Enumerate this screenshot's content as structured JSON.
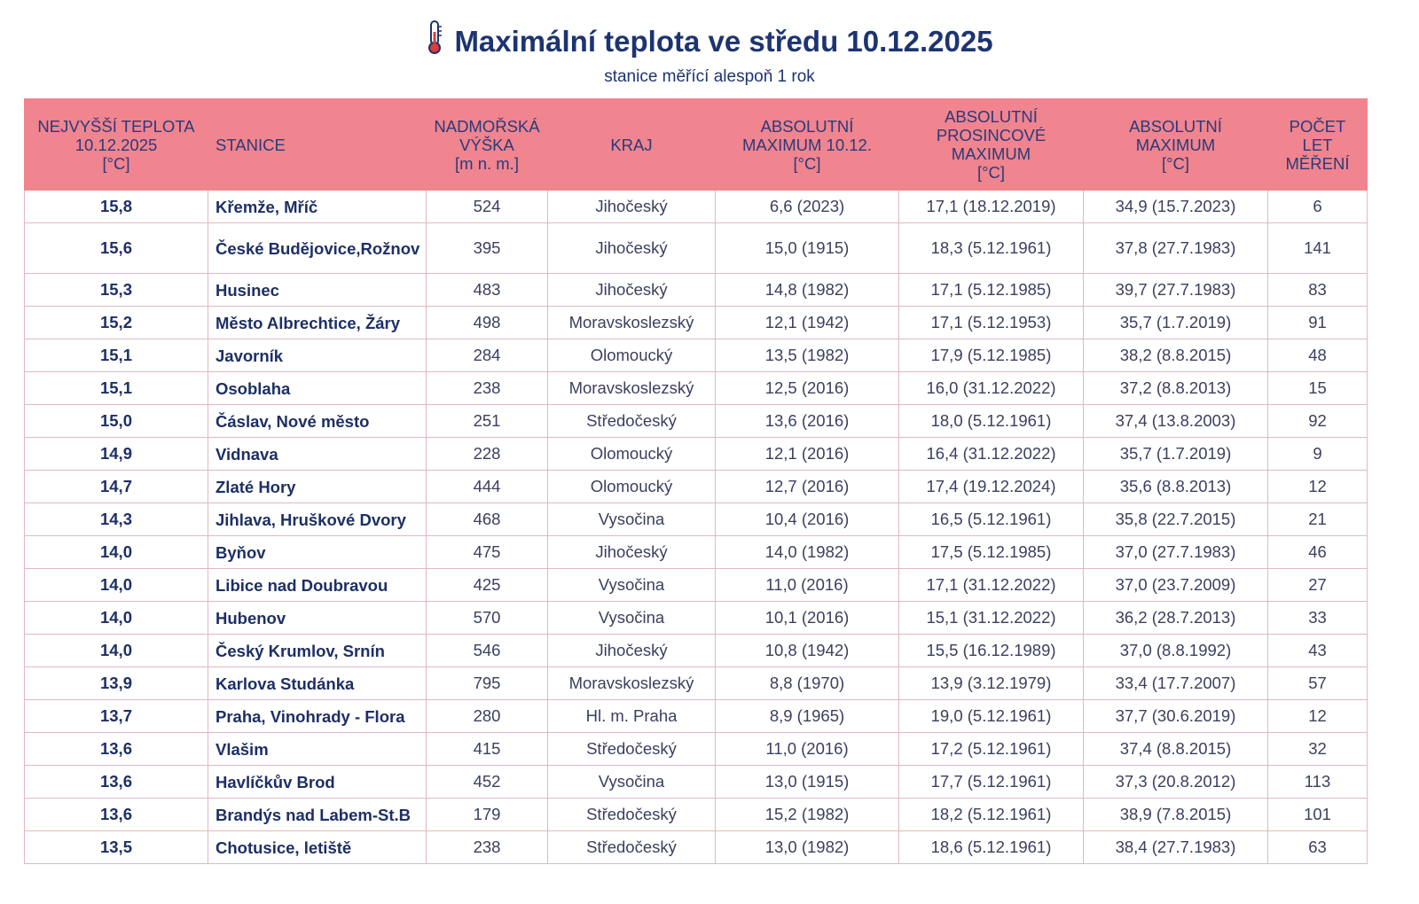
{
  "title": "Maximální teplota ve středu 10.12.2025",
  "subtitle": "stanice měřící alespoň 1 rok",
  "title_icon": "thermometer-icon",
  "colors": {
    "header_bg": "#f0848f",
    "title": "#1d3470",
    "border": "#e2b8bf"
  },
  "columns": [
    [
      "NEJVYŠŠÍ TEPLOTA",
      "10.12.2025",
      "[°C]"
    ],
    [
      "STANICE"
    ],
    [
      "NADMOŘSKÁ",
      "VÝŠKA",
      "[m n. m.]"
    ],
    [
      "KRAJ"
    ],
    [
      "ABSOLUTNÍ",
      "MAXIMUM 10.12.",
      "[°C]"
    ],
    [
      "ABSOLUTNÍ",
      "PROSINCOVÉ",
      "MAXIMUM",
      "[°C]"
    ],
    [
      "ABSOLUTNÍ",
      "MAXIMUM",
      "[°C]"
    ],
    [
      "POČET",
      "LET",
      "MĚŘENÍ"
    ]
  ],
  "rows": [
    [
      "15,8",
      "Křemže, Mříč",
      "524",
      "Jihočeský",
      "6,6 (2023)",
      "17,1 (18.12.2019)",
      "34,9 (15.7.2023)",
      "6"
    ],
    [
      "15,6",
      "České Budějovice,Rožnov",
      "395",
      "Jihočeský",
      "15,0 (1915)",
      "18,3 (5.12.1961)",
      "37,8 (27.7.1983)",
      "141"
    ],
    [
      "15,3",
      "Husinec",
      "483",
      "Jihočeský",
      "14,8 (1982)",
      "17,1 (5.12.1985)",
      "39,7 (27.7.1983)",
      "83"
    ],
    [
      "15,2",
      "Město Albrechtice, Žáry",
      "498",
      "Moravskoslezský",
      "12,1 (1942)",
      "17,1 (5.12.1953)",
      "35,7 (1.7.2019)",
      "91"
    ],
    [
      "15,1",
      "Javorník",
      "284",
      "Olomoucký",
      "13,5 (1982)",
      "17,9 (5.12.1985)",
      "38,2 (8.8.2015)",
      "48"
    ],
    [
      "15,1",
      "Osoblaha",
      "238",
      "Moravskoslezský",
      "12,5 (2016)",
      "16,0 (31.12.2022)",
      "37,2 (8.8.2013)",
      "15"
    ],
    [
      "15,0",
      "Čáslav, Nové město",
      "251",
      "Středočeský",
      "13,6 (2016)",
      "18,0 (5.12.1961)",
      "37,4 (13.8.2003)",
      "92"
    ],
    [
      "14,9",
      "Vidnava",
      "228",
      "Olomoucký",
      "12,1 (2016)",
      "16,4 (31.12.2022)",
      "35,7 (1.7.2019)",
      "9"
    ],
    [
      "14,7",
      "Zlaté Hory",
      "444",
      "Olomoucký",
      "12,7 (2016)",
      "17,4 (19.12.2024)",
      "35,6 (8.8.2013)",
      "12"
    ],
    [
      "14,3",
      "Jihlava, Hruškové Dvory",
      "468",
      "Vysočina",
      "10,4 (2016)",
      "16,5 (5.12.1961)",
      "35,8 (22.7.2015)",
      "21"
    ],
    [
      "14,0",
      "Byňov",
      "475",
      "Jihočeský",
      "14,0 (1982)",
      "17,5 (5.12.1985)",
      "37,0 (27.7.1983)",
      "46"
    ],
    [
      "14,0",
      "Libice nad Doubravou",
      "425",
      "Vysočina",
      "11,0 (2016)",
      "17,1 (31.12.2022)",
      "37,0 (23.7.2009)",
      "27"
    ],
    [
      "14,0",
      "Hubenov",
      "570",
      "Vysočina",
      "10,1 (2016)",
      "15,1 (31.12.2022)",
      "36,2 (28.7.2013)",
      "33"
    ],
    [
      "14,0",
      "Český Krumlov, Srnín",
      "546",
      "Jihočeský",
      "10,8 (1942)",
      "15,5 (16.12.1989)",
      "37,0 (8.8.1992)",
      "43"
    ],
    [
      "13,9",
      "Karlova Studánka",
      "795",
      "Moravskoslezský",
      "8,8 (1970)",
      "13,9 (3.12.1979)",
      "33,4 (17.7.2007)",
      "57"
    ],
    [
      "13,7",
      "Praha, Vinohrady - Flora",
      "280",
      "Hl. m. Praha",
      "8,9 (1965)",
      "19,0 (5.12.1961)",
      "37,7 (30.6.2019)",
      "12"
    ],
    [
      "13,6",
      "Vlašim",
      "415",
      "Středočeský",
      "11,0 (2016)",
      "17,2 (5.12.1961)",
      "37,4 (8.8.2015)",
      "32"
    ],
    [
      "13,6",
      "Havlíčkův Brod",
      "452",
      "Vysočina",
      "13,0 (1915)",
      "17,7 (5.12.1961)",
      "37,3 (20.8.2012)",
      "113"
    ],
    [
      "13,6",
      "Brandýs nad Labem-St.B",
      "179",
      "Středočeský",
      "15,2 (1982)",
      "18,2 (5.12.1961)",
      "38,9 (7.8.2015)",
      "101"
    ],
    [
      "13,5",
      "Chotusice, letiště",
      "238",
      "Středočeský",
      "13,0 (1982)",
      "18,6 (5.12.1961)",
      "38,4 (27.7.1983)",
      "63"
    ]
  ]
}
